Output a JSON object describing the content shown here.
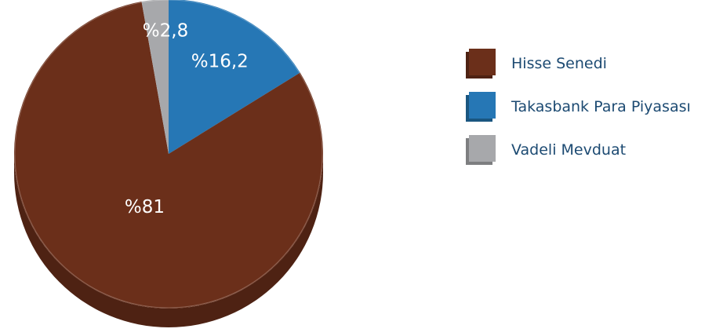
{
  "chart_data": {
    "type": "pie",
    "categories": [
      "Hisse Senedi",
      "Takasbank Para Piyasası",
      "Vadeli Mevduat"
    ],
    "values": [
      81,
      16.2,
      2.8
    ],
    "data_labels": [
      "%81",
      "%16,2",
      "%2,8"
    ],
    "colors": [
      "#6b2f1a",
      "#2677b5",
      "#a7a8ab"
    ],
    "side_colors": [
      "#4e2213",
      "#1a5680",
      "#7d7e80"
    ],
    "legend_position": "right",
    "title": ""
  }
}
